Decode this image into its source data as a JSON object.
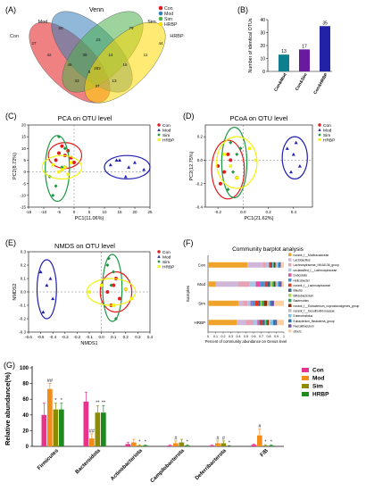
{
  "panels": {
    "A": {
      "label": "(A)",
      "title": "Venn",
      "sets": [
        {
          "name": "Con",
          "color": "#e41a1c"
        },
        {
          "name": "Mod",
          "color": "#377eb8"
        },
        {
          "name": "Sim",
          "color": "#4daf4a"
        },
        {
          "name": "HRBP",
          "color": "#ffd900"
        }
      ],
      "counts": [
        "27",
        "50",
        "79",
        "44",
        "42",
        "8",
        "33",
        "23",
        "13",
        "11",
        "46",
        "16",
        "39",
        "14",
        "37",
        "282"
      ]
    },
    "B": {
      "label": "(B)"
    },
    "C": {
      "label": "(C)",
      "title": "PCA on OTU level",
      "xlabel": "PC1(11.06%)",
      "ylabel": "PC2(8.72%)",
      "xticks": [
        "-15",
        "-10",
        "-5",
        "0",
        "5",
        "10",
        "15",
        "20",
        "25"
      ],
      "yticks": [
        "-15",
        "-10",
        "-5",
        "0",
        "5",
        "10",
        "15",
        "20"
      ]
    },
    "D": {
      "label": "(D)",
      "title": "PCoA on OTU level",
      "xlabel": "PC1(21.62%)",
      "ylabel": "PC2(12.75%)",
      "xticks": [
        "-0.2",
        "0.0",
        "0.2",
        "0.4"
      ],
      "yticks": [
        "-0.4",
        "-0.2",
        "0.0",
        "0.2"
      ]
    },
    "E": {
      "label": "(E)",
      "title": "NMDS on OTU level",
      "xlabel": "NMDS1",
      "ylabel": "NMDS2",
      "xticks": [
        "-0.6",
        "-0.5",
        "-0.4",
        "-0.3",
        "-0.2",
        "-0.1",
        "0.0",
        "0.1",
        "0.2",
        "0.3",
        "0.4"
      ],
      "yticks": [
        "-0.3",
        "-0.2",
        "-0.1",
        "0.0",
        "0.1",
        "0.2",
        "0.3"
      ]
    },
    "F": {
      "label": "(F)",
      "title": "Community barplot analysis",
      "xlabel": "Percent of community abundance on Genus level",
      "ylabel": "Samples",
      "xticks": [
        "0",
        "0.1",
        "0.2",
        "0.3",
        "0.4",
        "0.5",
        "0.6",
        "0.7",
        "0.8",
        "0.9",
        "1"
      ]
    },
    "G": {
      "label": "(G)"
    }
  },
  "scatter_legend": [
    {
      "name": "Con",
      "color": "#e41a1c",
      "marker": "circle"
    },
    {
      "name": "Mod",
      "color": "#1f1fb4",
      "marker": "triangle"
    },
    {
      "name": "Sim",
      "color": "#1a9641",
      "marker": "diamond"
    },
    {
      "name": "HRBP",
      "color": "#f2f20a",
      "marker": "square"
    }
  ],
  "chart_data": [
    {
      "panel": "B",
      "type": "bar",
      "categories": [
        "Con&Mod",
        "Con&Sim",
        "Con&HRBP"
      ],
      "values": [
        13,
        17,
        35
      ],
      "labels": [
        "13",
        "17",
        "35"
      ],
      "colors": [
        "#0e7f8f",
        "#6a1aa0",
        "#2222a8"
      ],
      "ylabel": "Number of identical OTUs",
      "yticks": [
        "0",
        "10",
        "20",
        "30",
        "40"
      ],
      "ylim": [
        0,
        40
      ]
    },
    {
      "panel": "C",
      "type": "scatter",
      "xlim": [
        -15,
        25
      ],
      "ylim": [
        -15,
        20
      ],
      "series": [
        {
          "name": "Con",
          "color": "#e41a1c",
          "marker": "circle",
          "x": [
            -6,
            -3,
            -5,
            -1,
            -2,
            -4,
            0,
            -3
          ],
          "y": [
            5,
            7,
            8,
            6,
            9,
            11,
            4,
            2
          ],
          "ellipse": {
            "cx": -3,
            "cy": 7,
            "rx": 5.5,
            "ry": 5.5
          }
        },
        {
          "name": "Mod",
          "color": "#1f1fb4",
          "marker": "triangle",
          "x": [
            12,
            15,
            18,
            20,
            23,
            17,
            14
          ],
          "y": [
            3,
            5,
            2,
            4,
            1,
            -2,
            5
          ],
          "ellipse": {
            "cx": 17.5,
            "cy": 2,
            "rx": 7.5,
            "ry": 5
          }
        },
        {
          "name": "Sim",
          "color": "#1a9641",
          "marker": "diamond",
          "x": [
            -8,
            -6,
            -4,
            -3,
            -7,
            -5
          ],
          "y": [
            -2,
            -6,
            2,
            10,
            -10,
            15
          ],
          "ellipse": {
            "cx": -5.5,
            "cy": 1.5,
            "rx": 4,
            "ry": 14
          }
        },
        {
          "name": "HRBP",
          "color": "#f2f20a",
          "marker": "square",
          "x": [
            -7,
            -4,
            -1,
            -5,
            -3,
            -2
          ],
          "y": [
            3,
            1,
            4,
            0,
            2,
            -1
          ],
          "ellipse": {
            "cx": -4,
            "cy": 2,
            "rx": 6.5,
            "ry": 5
          }
        }
      ]
    },
    {
      "panel": "D",
      "type": "scatter",
      "xlim": [
        -0.3,
        0.55
      ],
      "ylim": [
        -0.4,
        0.3
      ],
      "series": [
        {
          "name": "Con",
          "color": "#e41a1c",
          "marker": "circle",
          "x": [
            -0.2,
            -0.15,
            -0.1,
            -0.05,
            -0.18,
            -0.12
          ],
          "y": [
            -0.05,
            -0.1,
            0.0,
            -0.15,
            -0.2,
            0.05
          ],
          "ellipse": {
            "cx": -0.12,
            "cy": -0.08,
            "rx": 0.13,
            "ry": 0.25
          }
        },
        {
          "name": "Mod",
          "color": "#1f1fb4",
          "marker": "triangle",
          "x": [
            0.35,
            0.4,
            0.45,
            0.42,
            0.38
          ],
          "y": [
            0.1,
            0.05,
            -0.05,
            0.15,
            -0.1
          ],
          "ellipse": {
            "cx": 0.41,
            "cy": 0.02,
            "rx": 0.1,
            "ry": 0.18
          }
        },
        {
          "name": "Sim",
          "color": "#1a9641",
          "marker": "diamond",
          "x": [
            -0.1,
            -0.05,
            -0.08,
            -0.12,
            -0.02
          ],
          "y": [
            0.15,
            0.05,
            -0.1,
            -0.25,
            0.1
          ],
          "ellipse": {
            "cx": -0.07,
            "cy": -0.02,
            "rx": 0.1,
            "ry": 0.3
          }
        },
        {
          "name": "HRBP",
          "color": "#f2f20a",
          "marker": "square",
          "x": [
            -0.15,
            -0.1,
            0.05,
            0.1,
            -0.05
          ],
          "y": [
            0.05,
            -0.05,
            0.1,
            0.0,
            -0.15
          ],
          "ellipse": {
            "cx": -0.05,
            "cy": -0.02,
            "rx": 0.16,
            "ry": 0.22
          }
        }
      ]
    },
    {
      "panel": "E",
      "type": "scatter",
      "xlim": [
        -0.6,
        0.4
      ],
      "ylim": [
        -0.3,
        0.3
      ],
      "series": [
        {
          "name": "Con",
          "color": "#e41a1c",
          "marker": "circle",
          "x": [
            0.05,
            0.1,
            0.15,
            0.12,
            0.08,
            0.2
          ],
          "y": [
            0.0,
            0.05,
            -0.05,
            0.1,
            -0.1,
            0.02
          ],
          "ellipse": {
            "cx": 0.12,
            "cy": 0.0,
            "rx": 0.13,
            "ry": 0.15
          }
        },
        {
          "name": "Mod",
          "color": "#1f1fb4",
          "marker": "triangle",
          "x": [
            -0.5,
            -0.45,
            -0.4,
            -0.48,
            -0.42
          ],
          "y": [
            0.15,
            0.05,
            -0.05,
            -0.15,
            0.1
          ],
          "ellipse": {
            "cx": -0.45,
            "cy": 0.02,
            "rx": 0.08,
            "ry": 0.22
          }
        },
        {
          "name": "Sim",
          "color": "#1a9641",
          "marker": "diamond",
          "x": [
            0.05,
            0.1,
            0.08,
            0.12,
            0.06
          ],
          "y": [
            0.2,
            0.15,
            0.05,
            -0.2,
            0.25
          ],
          "ellipse": {
            "cx": 0.09,
            "cy": 0.03,
            "rx": 0.08,
            "ry": 0.25
          }
        },
        {
          "name": "HRBP",
          "color": "#f2f20a",
          "marker": "square",
          "x": [
            -0.1,
            0.0,
            0.2,
            0.25,
            0.1
          ],
          "y": [
            0.0,
            0.05,
            0.02,
            -0.05,
            -0.1
          ],
          "ellipse": {
            "cx": 0.08,
            "cy": 0.0,
            "rx": 0.2,
            "ry": 0.1
          }
        }
      ]
    },
    {
      "panel": "F",
      "type": "bar",
      "orientation": "horizontal",
      "stacked": true,
      "categories": [
        "Con",
        "Mod",
        "Sim",
        "HRBP"
      ],
      "series": [
        {
          "name": "norank_f__Muribaculaceae",
          "color": "#f0a32a",
          "values": [
            0.52,
            0.1,
            0.4,
            0.38
          ]
        },
        {
          "name": "Lactobacillus",
          "color": "#cfb7d9",
          "values": [
            0.2,
            0.3,
            0.06,
            0.12
          ]
        },
        {
          "name": "Lachnospiraceae_NK4A136_group",
          "color": "#e6a1b5",
          "values": [
            0.05,
            0.15,
            0.06,
            0.1
          ]
        },
        {
          "name": "unclassified_f__Lachnospiraceae",
          "color": "#a8c7e8",
          "values": [
            0.03,
            0.08,
            0.04,
            0.05
          ]
        },
        {
          "name": "Dubosiella",
          "color": "#e54fa3",
          "values": [
            0.0,
            0.06,
            0.02,
            0.01
          ]
        },
        {
          "name": "Helicobacter",
          "color": "#4a8fd4",
          "values": [
            0.01,
            0.06,
            0.04,
            0.02
          ]
        },
        {
          "name": "norank_f__Lachnospiraceae",
          "color": "#e3351f",
          "values": [
            0.02,
            0.03,
            0.05,
            0.04
          ]
        },
        {
          "name": "Blautia",
          "color": "#3a5f8c",
          "values": [
            0.02,
            0.04,
            0.02,
            0.03
          ]
        },
        {
          "name": "Bifidobacterium",
          "color": "#a6d854",
          "values": [
            0.01,
            0.03,
            0.02,
            0.01
          ]
        },
        {
          "name": "Bacteroides",
          "color": "#2ca25f",
          "values": [
            0.01,
            0.02,
            0.03,
            0.02
          ]
        },
        {
          "name": "norank_f__Eubacterium_coprostanoligenes_group",
          "color": "#8c2d04",
          "values": [
            0.02,
            0.02,
            0.04,
            0.02
          ]
        },
        {
          "name": "norank_f__Desulfovibrionaceae",
          "color": "#bdbdbd",
          "values": [
            0.02,
            0.02,
            0.02,
            0.03
          ]
        },
        {
          "name": "Enterorhabdus",
          "color": "#74c2e1",
          "values": [
            0.02,
            0.02,
            0.02,
            0.03
          ]
        },
        {
          "name": "Eubacterium_fissicatena_group",
          "color": "#2171b5",
          "values": [
            0.02,
            0.02,
            0.02,
            0.03
          ]
        },
        {
          "name": "Faecalibaculum",
          "color": "#6a51a3",
          "values": [
            0.01,
            0.02,
            0.03,
            0.02
          ]
        },
        {
          "name": "others",
          "color": "#fdd0a2",
          "values": [
            0.04,
            0.03,
            0.13,
            0.09
          ]
        }
      ]
    },
    {
      "panel": "G",
      "type": "bar",
      "grouped": true,
      "ylabel": "Relative abundance(%)",
      "ylim": [
        0,
        100
      ],
      "yticks": [
        "0",
        "20",
        "40",
        "60",
        "80",
        "100"
      ],
      "categories": [
        "Firmicutes",
        "Bacteroidota",
        "Actinobacteriota",
        "Campilobacterota",
        "Deferribacterota",
        "F/B"
      ],
      "series": [
        {
          "name": "Con",
          "color": "#e8328c",
          "values": [
            40,
            57,
            3,
            1,
            1,
            2
          ],
          "errors": [
            15,
            12,
            2,
            1,
            1,
            1
          ],
          "marks": [
            "",
            "",
            "",
            "",
            "",
            ""
          ]
        },
        {
          "name": "Mod",
          "color": "#f28c1a",
          "values": [
            73,
            10,
            5,
            4,
            4,
            14
          ],
          "errors": [
            7,
            6,
            4,
            3,
            3,
            8
          ],
          "marks": [
            "##",
            "##",
            "",
            "#",
            "#",
            "#"
          ]
        },
        {
          "name": "Sim",
          "color": "#8c8c00",
          "values": [
            47,
            43,
            1,
            5,
            4,
            1
          ],
          "errors": [
            8,
            9,
            1,
            4,
            3,
            1
          ],
          "marks": [
            "*",
            "**",
            "*",
            "",
            "#",
            "*"
          ]
        },
        {
          "name": "HRBP",
          "color": "#1f8a1f",
          "values": [
            47,
            43,
            1,
            1,
            0,
            1
          ],
          "errors": [
            8,
            9,
            1,
            1,
            1,
            1
          ],
          "marks": [
            "*",
            "**",
            "*",
            "*",
            "*",
            "*"
          ]
        }
      ]
    }
  ]
}
